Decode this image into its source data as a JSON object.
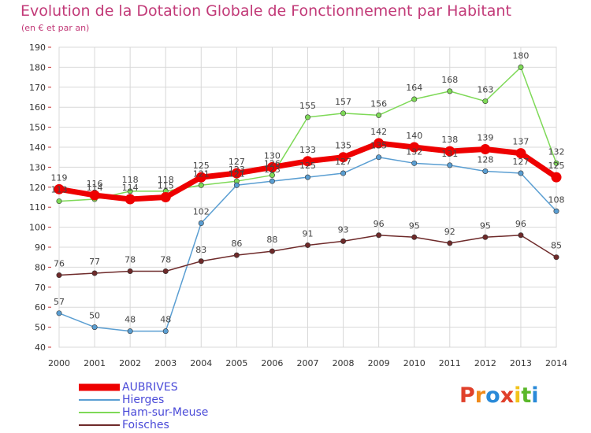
{
  "title": "Evolution de la Dotation Globale de Fonctionnement par Habitant",
  "subtitle": "(en € et par an)",
  "logo_text": "Proxiti",
  "colors": {
    "title": "#c23a78",
    "grid": "#d8d8d8",
    "axis_text": "#333333",
    "legend_text": "#4a4ad8",
    "logo": [
      "#e0402a",
      "#f08a1a",
      "#2a8ad8",
      "#e0402a",
      "#f2c21a",
      "#5ab82a",
      "#2a8ad8"
    ]
  },
  "chart_data": {
    "type": "line",
    "title": "Evolution de la Dotation Globale de Fonctionnement par Habitant",
    "subtitle": "(en € et par an)",
    "x": [
      "2000",
      "2001",
      "2002",
      "2003",
      "2004",
      "2005",
      "2006",
      "2007",
      "2008",
      "2009",
      "2010",
      "2011",
      "2012",
      "2013",
      "2014"
    ],
    "xlabel": "",
    "ylabel": "",
    "ylim": [
      40,
      190
    ],
    "yticks": [
      40,
      50,
      60,
      70,
      80,
      90,
      100,
      110,
      120,
      130,
      140,
      150,
      160,
      170,
      180,
      190
    ],
    "grid": true,
    "legend_position": "bottom-left",
    "series": [
      {
        "name": "AUBRIVES",
        "color": "#ee0000",
        "values": [
          119,
          116,
          114,
          115,
          125,
          127,
          130,
          133,
          135,
          142,
          140,
          138,
          139,
          137,
          125
        ]
      },
      {
        "name": "Hierges",
        "color": "#5a9ed2",
        "values": [
          57,
          50,
          48,
          48,
          102,
          121,
          123,
          125,
          127,
          135,
          132,
          131,
          128,
          127,
          108
        ]
      },
      {
        "name": "Ham-sur-Meuse",
        "color": "#7ed957",
        "values": [
          113,
          114,
          118,
          118,
          121,
          123,
          126,
          155,
          157,
          156,
          164,
          168,
          163,
          180,
          132
        ]
      },
      {
        "name": "Foisches",
        "color": "#6e2a2a",
        "values": [
          76,
          77,
          78,
          78,
          83,
          86,
          88,
          91,
          93,
          96,
          95,
          92,
          95,
          96,
          85
        ]
      }
    ]
  }
}
